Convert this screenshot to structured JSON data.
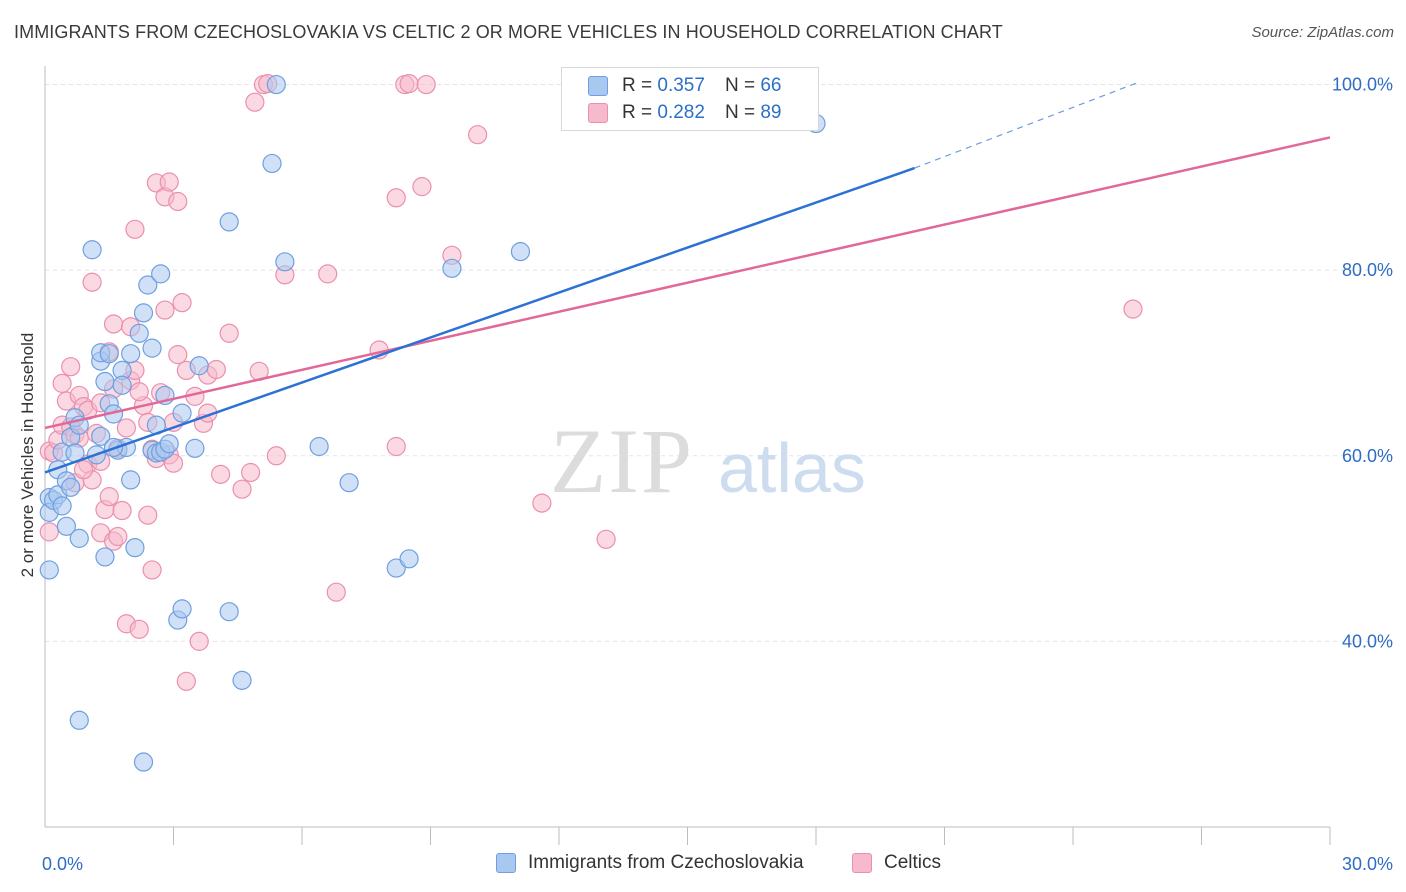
{
  "title": "IMMIGRANTS FROM CZECHOSLOVAKIA VS CELTIC 2 OR MORE VEHICLES IN HOUSEHOLD CORRELATION CHART",
  "source": "Source: ZipAtlas.com",
  "watermark": {
    "zip": "ZIP",
    "atlas": "atlas"
  },
  "legend": {
    "series1": {
      "r_label": "R =",
      "r_value": "0.357",
      "n_label": "N =",
      "n_value": "66"
    },
    "series2": {
      "r_label": "R =",
      "r_value": "0.282",
      "n_label": "N =",
      "n_value": "89"
    }
  },
  "bottom_legend": {
    "series1": "Immigrants from Czechoslovakia",
    "series2": "Celtics"
  },
  "colors": {
    "blue_fill": "#a9c8f0",
    "blue_stroke": "#6f9fe0",
    "blue_line": "#2b72d4",
    "pink_fill": "#f7b9cc",
    "pink_stroke": "#eb8fae",
    "pink_line": "#e2689a",
    "grid": "#e4e4e4",
    "tick_text": "#2f6cc4"
  },
  "chart_data": {
    "type": "scatter",
    "title": "IMMIGRANTS FROM CZECHOSLOVAKIA VS CELTIC 2 OR MORE VEHICLES IN HOUSEHOLD CORRELATION CHART",
    "xlabel": "",
    "ylabel": "2 or more Vehicles in Household",
    "xlim": [
      0,
      30
    ],
    "ylim": [
      20,
      102
    ],
    "x_tick_labels": [
      {
        "value": 0,
        "label": "0.0%"
      },
      {
        "value": 30,
        "label": "30.0%"
      }
    ],
    "y_tick_labels": [
      {
        "value": 100,
        "label": "100.0%"
      },
      {
        "value": 80,
        "label": "80.0%"
      },
      {
        "value": 60,
        "label": "60.0%"
      },
      {
        "value": 40,
        "label": "40.0%"
      }
    ],
    "y_gridlines": [
      100,
      80,
      60,
      40
    ],
    "x_minor_ticks": [
      3,
      6,
      9,
      12,
      15,
      18,
      21,
      24,
      27,
      30
    ],
    "series": [
      {
        "name": "Immigrants from Czechoslovakia",
        "color": "blue",
        "trend": {
          "x0": 0,
          "y0": 58.2,
          "x1": 20.3,
          "y1": 91.0,
          "dash_x1": 25.5,
          "dash_y1": 100.2
        },
        "points": [
          [
            0.1,
            55.5
          ],
          [
            0.1,
            53.9
          ],
          [
            0.1,
            47.7
          ],
          [
            0.2,
            55.2
          ],
          [
            0.3,
            55.8
          ],
          [
            0.3,
            58.5
          ],
          [
            0.4,
            60.4
          ],
          [
            0.4,
            54.6
          ],
          [
            0.5,
            57.3
          ],
          [
            0.5,
            52.4
          ],
          [
            0.6,
            62.0
          ],
          [
            0.6,
            56.6
          ],
          [
            0.7,
            60.3
          ],
          [
            0.7,
            64.1
          ],
          [
            0.8,
            63.3
          ],
          [
            0.8,
            51.1
          ],
          [
            1.1,
            82.2
          ],
          [
            1.2,
            60.1
          ],
          [
            1.3,
            62.1
          ],
          [
            1.3,
            70.2
          ],
          [
            1.3,
            71.1
          ],
          [
            1.4,
            68.0
          ],
          [
            1.4,
            49.1
          ],
          [
            1.5,
            71.0
          ],
          [
            1.5,
            65.6
          ],
          [
            1.6,
            64.5
          ],
          [
            1.7,
            60.6
          ],
          [
            1.8,
            69.2
          ],
          [
            1.8,
            67.6
          ],
          [
            1.9,
            60.9
          ],
          [
            2.0,
            57.4
          ],
          [
            2.0,
            71.0
          ],
          [
            2.1,
            50.1
          ],
          [
            2.2,
            73.2
          ],
          [
            2.3,
            75.4
          ],
          [
            2.4,
            78.4
          ],
          [
            2.5,
            60.6
          ],
          [
            2.5,
            71.6
          ],
          [
            2.6,
            60.3
          ],
          [
            2.6,
            63.3
          ],
          [
            2.7,
            79.6
          ],
          [
            2.7,
            60.4
          ],
          [
            2.8,
            60.7
          ],
          [
            2.8,
            66.5
          ],
          [
            2.9,
            61.3
          ],
          [
            3.1,
            42.3
          ],
          [
            3.2,
            64.6
          ],
          [
            3.2,
            43.5
          ],
          [
            3.5,
            60.8
          ],
          [
            3.6,
            69.7
          ],
          [
            4.3,
            85.2
          ],
          [
            4.3,
            43.2
          ],
          [
            4.6,
            35.8
          ],
          [
            5.3,
            91.5
          ],
          [
            5.6,
            80.9
          ],
          [
            6.4,
            61.0
          ],
          [
            7.1,
            57.1
          ],
          [
            8.2,
            47.9
          ],
          [
            8.5,
            48.9
          ],
          [
            9.5,
            80.2
          ],
          [
            11.1,
            82.0
          ],
          [
            18.0,
            95.8
          ],
          [
            5.4,
            100.0
          ],
          [
            0.8,
            31.5
          ],
          [
            2.3,
            27.0
          ],
          [
            1.6,
            60.9
          ]
        ]
      },
      {
        "name": "Celtics",
        "color": "pink",
        "trend": {
          "x0": 0,
          "y0": 63.0,
          "x1": 30,
          "y1": 94.3
        },
        "points": [
          [
            0.1,
            51.8
          ],
          [
            0.1,
            60.5
          ],
          [
            0.2,
            60.3
          ],
          [
            0.3,
            61.7
          ],
          [
            0.4,
            63.3
          ],
          [
            0.4,
            67.8
          ],
          [
            0.5,
            65.9
          ],
          [
            0.6,
            69.6
          ],
          [
            0.6,
            63.1
          ],
          [
            0.7,
            62.3
          ],
          [
            0.7,
            57.1
          ],
          [
            0.8,
            61.9
          ],
          [
            0.8,
            66.5
          ],
          [
            0.9,
            65.3
          ],
          [
            1.0,
            64.9
          ],
          [
            1.0,
            59.1
          ],
          [
            1.1,
            57.4
          ],
          [
            1.1,
            78.7
          ],
          [
            1.2,
            62.4
          ],
          [
            1.3,
            65.7
          ],
          [
            1.3,
            59.4
          ],
          [
            1.3,
            51.7
          ],
          [
            1.4,
            54.2
          ],
          [
            1.5,
            71.2
          ],
          [
            1.5,
            55.6
          ],
          [
            1.6,
            50.8
          ],
          [
            1.6,
            74.2
          ],
          [
            1.7,
            51.3
          ],
          [
            1.7,
            60.8
          ],
          [
            1.8,
            54.1
          ],
          [
            1.9,
            63.0
          ],
          [
            1.9,
            41.9
          ],
          [
            2.0,
            73.9
          ],
          [
            2.0,
            68.1
          ],
          [
            2.1,
            69.2
          ],
          [
            2.1,
            84.4
          ],
          [
            2.2,
            41.3
          ],
          [
            2.3,
            65.4
          ],
          [
            2.4,
            63.6
          ],
          [
            2.4,
            53.6
          ],
          [
            2.5,
            47.7
          ],
          [
            2.5,
            60.7
          ],
          [
            2.6,
            59.7
          ],
          [
            2.6,
            89.4
          ],
          [
            2.7,
            66.8
          ],
          [
            2.8,
            75.7
          ],
          [
            2.8,
            87.9
          ],
          [
            2.9,
            89.5
          ],
          [
            2.9,
            60.1
          ],
          [
            3.0,
            63.6
          ],
          [
            3.0,
            59.2
          ],
          [
            3.1,
            87.4
          ],
          [
            3.1,
            70.9
          ],
          [
            3.2,
            76.5
          ],
          [
            3.3,
            35.7
          ],
          [
            3.3,
            69.2
          ],
          [
            3.5,
            66.4
          ],
          [
            3.6,
            40.0
          ],
          [
            3.7,
            63.5
          ],
          [
            3.8,
            68.7
          ],
          [
            3.8,
            64.6
          ],
          [
            4.0,
            69.3
          ],
          [
            4.1,
            58.0
          ],
          [
            4.3,
            73.2
          ],
          [
            4.6,
            56.4
          ],
          [
            4.8,
            58.2
          ],
          [
            4.9,
            98.1
          ],
          [
            5.0,
            69.1
          ],
          [
            5.1,
            100.0
          ],
          [
            5.2,
            100.1
          ],
          [
            5.4,
            60.0
          ],
          [
            5.6,
            79.5
          ],
          [
            6.6,
            79.6
          ],
          [
            6.8,
            45.3
          ],
          [
            7.8,
            71.4
          ],
          [
            8.2,
            61.0
          ],
          [
            8.2,
            87.8
          ],
          [
            8.4,
            100.0
          ],
          [
            8.5,
            100.1
          ],
          [
            8.8,
            89.0
          ],
          [
            8.9,
            100.0
          ],
          [
            9.5,
            81.6
          ],
          [
            10.1,
            94.6
          ],
          [
            11.6,
            54.9
          ],
          [
            13.1,
            51.0
          ],
          [
            25.4,
            75.8
          ],
          [
            1.6,
            67.2
          ],
          [
            0.9,
            58.5
          ],
          [
            2.2,
            66.9
          ]
        ]
      }
    ]
  }
}
